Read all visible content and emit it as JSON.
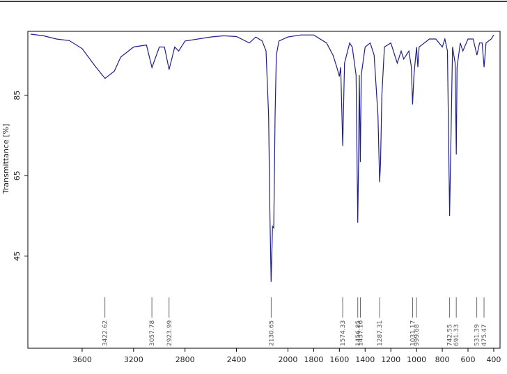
{
  "chart_data": {
    "type": "line",
    "y_label": "Transmittance [%]",
    "color": "#1f1f8c",
    "xlim": [
      4022,
      351
    ],
    "ylim": [
      22.1,
      100.9
    ],
    "xticks": [
      3600,
      3200,
      2800,
      2400,
      2000,
      1800,
      1600,
      1400,
      1200,
      1000,
      800,
      600,
      400
    ],
    "yticks": [
      45,
      65,
      85
    ],
    "x": [
      4000,
      3900,
      3800,
      3700,
      3600,
      3500,
      3422,
      3350,
      3300,
      3200,
      3100,
      3057,
      3000,
      2960,
      2924,
      2880,
      2850,
      2800,
      2600,
      2500,
      2400,
      2300,
      2250,
      2200,
      2170,
      2150,
      2140,
      2131,
      2120,
      2110,
      2100,
      2090,
      2070,
      2000,
      1900,
      1800,
      1700,
      1650,
      1620,
      1600,
      1590,
      1574,
      1560,
      1520,
      1500,
      1470,
      1457,
      1450,
      1445,
      1437,
      1430,
      1400,
      1360,
      1330,
      1300,
      1287,
      1280,
      1270,
      1250,
      1200,
      1150,
      1120,
      1100,
      1060,
      1040,
      1031,
      1020,
      1000,
      990,
      980,
      900,
      850,
      800,
      780,
      760,
      743,
      735,
      720,
      700,
      691,
      685,
      660,
      640,
      600,
      560,
      531,
      510,
      490,
      475,
      460,
      420,
      400
    ],
    "values": [
      100.2,
      99.8,
      99.0,
      98.6,
      96.6,
      92.3,
      89.2,
      91,
      94.5,
      97,
      97.5,
      91.9,
      97,
      97,
      91.4,
      97,
      96,
      98.5,
      99.5,
      99.8,
      99.6,
      98,
      99.5,
      98.5,
      96,
      80,
      55,
      38.6,
      52.4,
      52,
      80,
      95,
      98.5,
      99.5,
      100,
      100,
      98,
      95,
      92,
      89.7,
      92,
      72.4,
      93,
      98,
      97,
      90,
      53.3,
      70,
      90,
      68.4,
      90,
      97,
      98,
      95,
      80,
      63.4,
      68,
      85,
      97,
      98,
      93,
      96,
      94,
      96,
      92,
      82.7,
      90,
      97,
      92,
      97,
      99,
      99,
      97,
      99,
      96,
      55,
      70,
      97,
      93,
      70.3,
      92,
      98,
      96,
      99,
      99,
      95,
      98,
      98,
      92,
      98,
      99,
      100
    ],
    "peaks": [
      3422.62,
      3057.78,
      2923.99,
      2130.65,
      1574.33,
      1456.85,
      1437.16,
      1287.31,
      1031.17,
      999.68,
      742.55,
      691.33,
      531.39,
      475.47
    ]
  }
}
